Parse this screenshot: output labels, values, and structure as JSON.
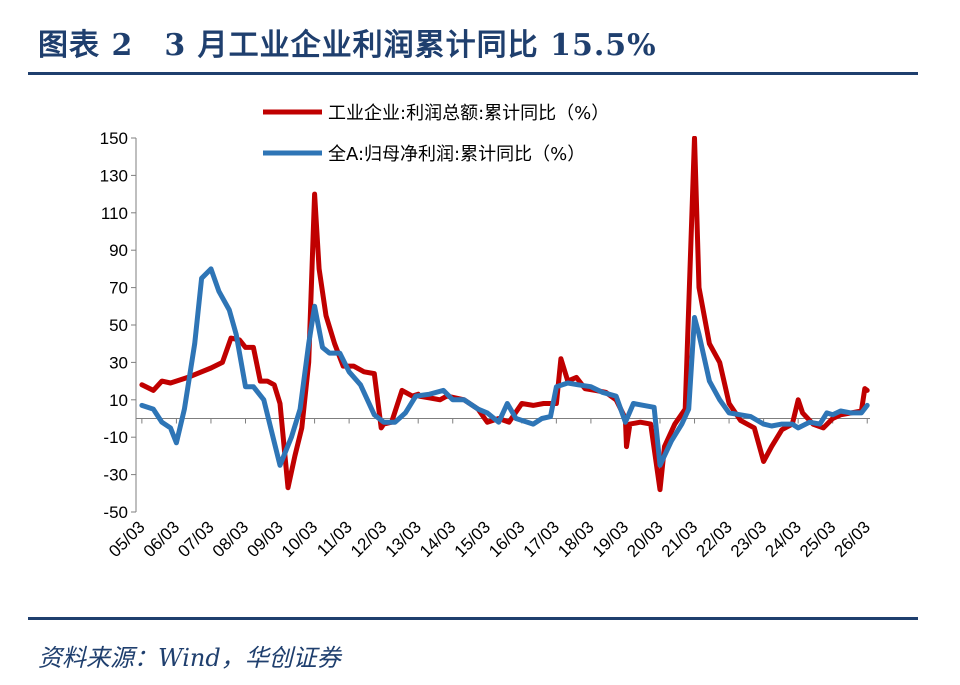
{
  "header": {
    "title": "图表 2　3 月工业企业利润累计同比 15.5%"
  },
  "footer": {
    "source": "资料来源：Wind，华创证券"
  },
  "chart_data": {
    "type": "line",
    "title": "",
    "xlabel": "",
    "ylabel": "",
    "ylim": [
      -50,
      150
    ],
    "y_ticks": [
      150,
      130,
      110,
      90,
      70,
      50,
      30,
      10,
      -10,
      -30,
      -50
    ],
    "x_tick_labels": [
      "05/03",
      "06/03",
      "07/03",
      "08/03",
      "09/03",
      "10/03",
      "11/03",
      "12/03",
      "13/03",
      "14/03",
      "15/03",
      "16/03",
      "17/03",
      "18/03",
      "19/03",
      "20/03",
      "21/03",
      "22/03",
      "23/03",
      "24/03",
      "25/03",
      "26/03"
    ],
    "legend_position": "top",
    "colors": {
      "industrial": "#c00000",
      "allA": "#2e75b6",
      "frame": "#1f3f6e"
    },
    "series": [
      {
        "name": "工业企业:利润总额:累计同比（%）",
        "color": "#c00000",
        "x": [
          2005.17,
          2005.5,
          2005.75,
          2006.0,
          2006.5,
          2006.9,
          2007.17,
          2007.5,
          2007.75,
          2008.0,
          2008.17,
          2008.4,
          2008.6,
          2008.8,
          2009.0,
          2009.17,
          2009.4,
          2009.6,
          2009.8,
          2010.0,
          2010.17,
          2010.3,
          2010.5,
          2010.75,
          2011.0,
          2011.3,
          2011.6,
          2011.9,
          2012.1,
          2012.17,
          2012.4,
          2012.7,
          2013.0,
          2013.17,
          2013.2,
          2013.5,
          2013.8,
          2014.0,
          2014.5,
          2014.9,
          2015.17,
          2015.5,
          2015.8,
          2016.17,
          2016.5,
          2016.8,
          2017.17,
          2017.3,
          2017.5,
          2017.75,
          2018.0,
          2018.3,
          2018.6,
          2018.9,
          2019.17,
          2019.2,
          2019.3,
          2019.6,
          2019.9,
          2020.17,
          2020.3,
          2020.6,
          2020.9,
          2021.17,
          2021.3,
          2021.6,
          2021.9,
          2022.17,
          2022.5,
          2022.9,
          2023.17,
          2023.4,
          2023.7,
          2024.0,
          2024.17,
          2024.3,
          2024.6,
          2024.9,
          2025.17,
          2025.4,
          2025.7,
          2026.0,
          2026.1,
          2026.17
        ],
        "values": [
          18,
          15,
          20,
          19,
          22,
          25,
          27,
          30,
          43,
          42,
          38,
          38,
          20,
          20,
          18,
          8,
          -37,
          -20,
          -5,
          30,
          120,
          80,
          55,
          40,
          28,
          28,
          25,
          24,
          -5,
          -3,
          -2,
          15,
          12,
          13,
          12,
          11,
          10,
          12,
          10,
          5,
          -2,
          0,
          -2,
          8,
          7,
          8,
          8,
          32,
          20,
          22,
          16,
          15,
          14,
          10,
          0,
          -15,
          -3,
          -2,
          -3,
          -38,
          -15,
          -3,
          5,
          150,
          70,
          40,
          30,
          8,
          -1,
          -5,
          -23,
          -15,
          -6,
          -3,
          10,
          3,
          -3,
          -5,
          0,
          2,
          3,
          4,
          16,
          15
        ]
      },
      {
        "name": "全A:归母净利润:累计同比（%）",
        "color": "#2e75b6",
        "x": [
          2005.17,
          2005.5,
          2005.75,
          2006.0,
          2006.17,
          2006.4,
          2006.7,
          2006.9,
          2007.17,
          2007.4,
          2007.7,
          2007.9,
          2008.17,
          2008.4,
          2008.7,
          2008.9,
          2009.17,
          2009.5,
          2009.75,
          2010.0,
          2010.17,
          2010.4,
          2010.6,
          2010.9,
          2011.17,
          2011.5,
          2011.9,
          2012.17,
          2012.5,
          2012.8,
          2013.1,
          2013.5,
          2013.9,
          2014.17,
          2014.5,
          2014.9,
          2015.17,
          2015.5,
          2015.75,
          2016.0,
          2016.5,
          2016.75,
          2017.0,
          2017.17,
          2017.5,
          2017.8,
          2018.17,
          2018.5,
          2018.9,
          2019.17,
          2019.4,
          2019.7,
          2020.0,
          2020.17,
          2020.5,
          2020.8,
          2021.0,
          2021.17,
          2021.3,
          2021.6,
          2021.9,
          2022.17,
          2022.5,
          2022.8,
          2023.17,
          2023.4,
          2023.7,
          2024.0,
          2024.17,
          2024.5,
          2024.8,
          2025.0,
          2025.17,
          2025.4,
          2025.7,
          2026.0,
          2026.17
        ],
        "values": [
          7,
          5,
          -2,
          -5,
          -13,
          5,
          40,
          75,
          80,
          68,
          58,
          45,
          17,
          17,
          10,
          -5,
          -25,
          -10,
          5,
          40,
          60,
          38,
          35,
          35,
          25,
          18,
          2,
          -2,
          -2,
          3,
          12,
          13,
          15,
          10,
          10,
          5,
          3,
          -2,
          8,
          0,
          -3,
          0,
          1,
          17,
          19,
          18,
          17,
          14,
          12,
          -2,
          8,
          7,
          6,
          -25,
          -12,
          -3,
          5,
          54,
          45,
          20,
          10,
          3,
          2,
          1,
          -3,
          -4,
          -3,
          -3,
          -5,
          -2,
          -3,
          3,
          2,
          4,
          3,
          3,
          7
        ]
      }
    ]
  }
}
